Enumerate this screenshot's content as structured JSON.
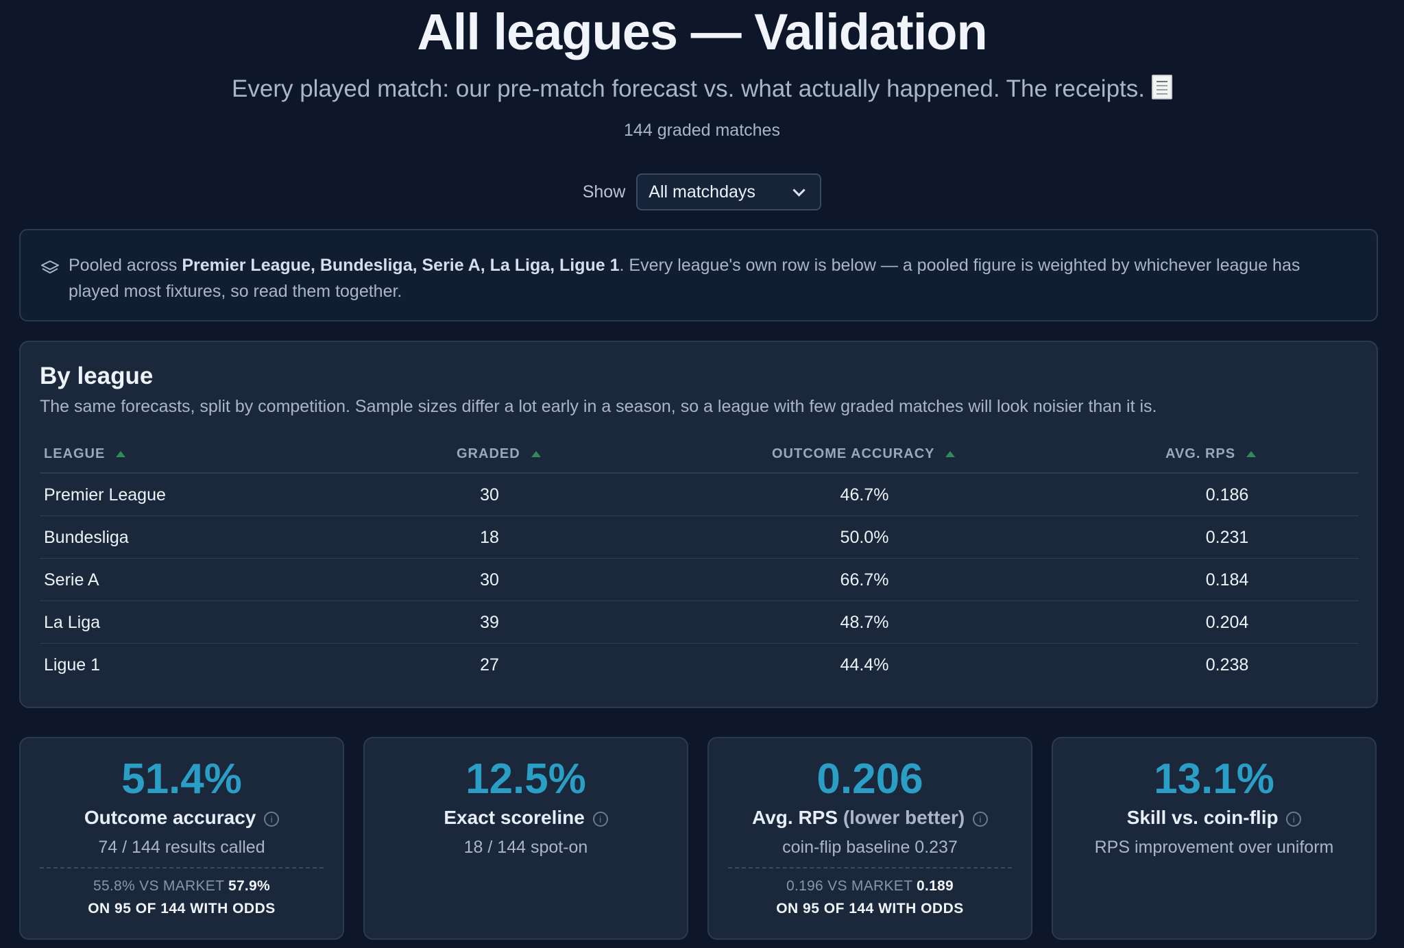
{
  "header": {
    "title": "All leagues — Validation",
    "subtitle": "Every played match: our pre-match forecast vs. what actually happened. The receipts.",
    "receipt_icon": "receipt-icon",
    "graded_count": "144 graded matches"
  },
  "filter": {
    "label": "Show",
    "selected": "All matchdays"
  },
  "note": {
    "icon": "layers-icon",
    "prefix": "Pooled across ",
    "leagues_bold": "Premier League, Bundesliga, Serie A, La Liga, Ligue 1",
    "suffix": ". Every league's own row is below — a pooled figure is weighted by whichever league has played most fixtures, so read them together."
  },
  "by_league": {
    "title": "By league",
    "description": "The same forecasts, split by competition. Sample sizes differ a lot early in a season, so a league with few graded matches will look noisier than it is.",
    "columns": [
      "LEAGUE",
      "GRADED",
      "OUTCOME ACCURACY",
      "AVG. RPS"
    ],
    "rows": [
      {
        "league": "Premier League",
        "graded": "30",
        "accuracy": "46.7%",
        "rps": "0.186"
      },
      {
        "league": "Bundesliga",
        "graded": "18",
        "accuracy": "50.0%",
        "rps": "0.231"
      },
      {
        "league": "Serie A",
        "graded": "30",
        "accuracy": "66.7%",
        "rps": "0.184"
      },
      {
        "league": "La Liga",
        "graded": "39",
        "accuracy": "48.7%",
        "rps": "0.204"
      },
      {
        "league": "Ligue 1",
        "graded": "27",
        "accuracy": "44.4%",
        "rps": "0.238"
      }
    ]
  },
  "cards": [
    {
      "value": "51.4%",
      "label": "Outcome accuracy",
      "sub": "74 / 144 results called",
      "market_prefix": "55.8% VS MARKET ",
      "market_value": "57.9%",
      "market_note": "ON 95 OF 144 WITH ODDS"
    },
    {
      "value": "12.5%",
      "label": "Exact scoreline",
      "sub": "18 / 144 spot-on"
    },
    {
      "value": "0.206",
      "label": "Avg. RPS",
      "label_muted": "(lower better)",
      "sub": "coin-flip baseline 0.237",
      "market_prefix": "0.196 VS MARKET ",
      "market_value": "0.189",
      "market_note": "ON 95 OF 144 WITH ODDS"
    },
    {
      "value": "13.1%",
      "label": "Skill vs. coin-flip",
      "sub": "RPS improvement over uniform"
    }
  ],
  "colors": {
    "background": "#0d1729",
    "panel": "#1b273b",
    "accent": "#2a9ec4",
    "sort_indicator": "#2f8a5a"
  }
}
